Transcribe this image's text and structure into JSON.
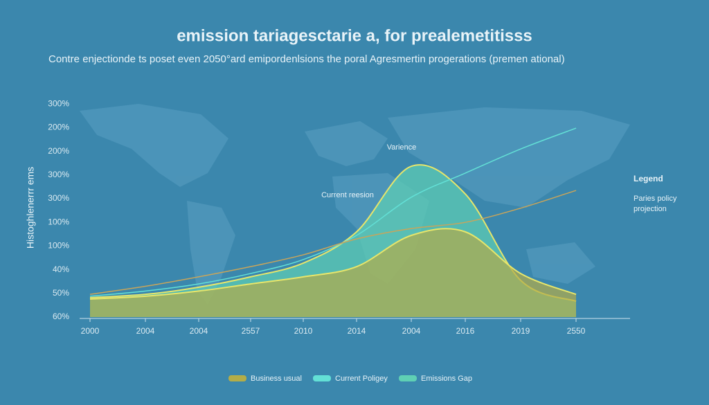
{
  "chart_data": {
    "type": "area",
    "title": "emission tariagesctarie a, for prealemetitisss",
    "subtitle": "Contre enjectionde ts poset even 2050°ard emipordenlsions the poral Agresmertin progerations (premen ational)",
    "y_label": "Histoghlenerrr ems",
    "legend_title": "Legend",
    "annotations": [
      "Varience",
      "Current reesion"
    ],
    "y_axis_labels": [
      "60%",
      "50%",
      "40%",
      "100%",
      "100%",
      "300%",
      "300%",
      "200%",
      "200%",
      "300%"
    ],
    "categories": [
      "2000",
      "2004",
      "2004",
      "2557",
      "2010",
      "2014",
      "2004",
      "2016",
      "2019",
      "2550"
    ],
    "series": [
      {
        "name": "Emissions Gap",
        "color": "#e8e66a",
        "fill": "#5fd0b4",
        "values": [
          0.82,
          0.96,
          1.26,
          1.7,
          2.28,
          3.6,
          6.37,
          5.2,
          1.55,
          0.67
        ]
      },
      {
        "name": "Business usual",
        "color": "#e8e66a",
        "fill": "#b3ad48",
        "values": [
          0.76,
          0.88,
          1.1,
          1.4,
          1.7,
          2.13,
          3.45,
          3.6,
          1.84,
          0.96
        ]
      },
      {
        "name": "Current Poligey",
        "color": "#63e0d6",
        "values": [
          0.88,
          1.1,
          1.4,
          1.84,
          2.43,
          3.45,
          5.06,
          6.08,
          7.1,
          7.98
        ]
      },
      {
        "name": "Paries policy projection",
        "color": "#c9a55a",
        "values": [
          0.96,
          1.3,
          1.7,
          2.13,
          2.63,
          3.3,
          3.74,
          4.0,
          4.6,
          5.35
        ]
      }
    ]
  }
}
